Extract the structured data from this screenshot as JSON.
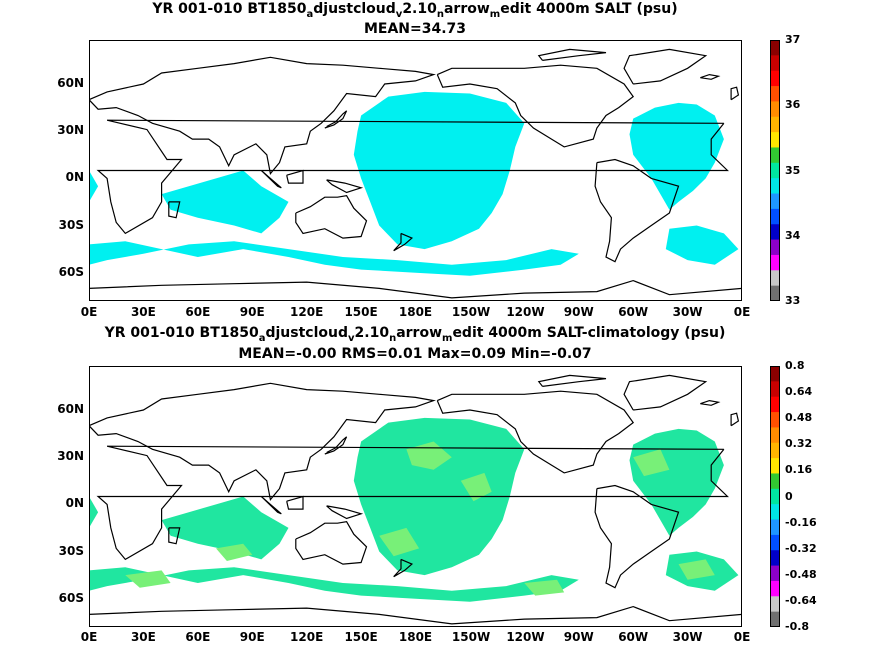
{
  "panels": [
    {
      "title_parts": [
        "YR 001-010 BT1850",
        "a",
        "djustcloud",
        "v",
        "2.10",
        "n",
        "arrow",
        "m",
        "edit 4000m SALT (psu)"
      ],
      "subtitle": "MEAN=34.73",
      "colorbar": {
        "labels": [
          "37",
          "36",
          "35",
          "34",
          "33"
        ],
        "colors": [
          "#8b0000",
          "#c80000",
          "#ff0000",
          "#ff5000",
          "#ff8c00",
          "#ffb400",
          "#ffe600",
          "#32c832",
          "#00e6a0",
          "#00e6e6",
          "#1e96ff",
          "#0050ff",
          "#0000c8",
          "#8c00c8",
          "#ff00ff",
          "#c8c8c8",
          "#707070"
        ]
      },
      "fill_color": "#00f0f0"
    },
    {
      "title_parts": [
        "YR 001-010 BT1850",
        "a",
        "djustcloud",
        "v",
        "2.10",
        "n",
        "arrow",
        "m",
        "edit 4000m SALT-climatology (psu)"
      ],
      "subtitle": "MEAN=-0.00   RMS=0.01   Max=0.09   Min=-0.07",
      "colorbar": {
        "labels": [
          "0.8",
          "0.64",
          "0.48",
          "0.32",
          "0.16",
          "0",
          "-0.16",
          "-0.32",
          "-0.48",
          "-0.64",
          "-0.8"
        ],
        "colors": [
          "#8b0000",
          "#c80000",
          "#ff0000",
          "#ff5000",
          "#ff8c00",
          "#ffb400",
          "#ffe600",
          "#32c832",
          "#00e6a0",
          "#00e6e6",
          "#1e96ff",
          "#0050ff",
          "#0000c8",
          "#8c00c8",
          "#ff00ff",
          "#c8c8c8",
          "#707070"
        ]
      },
      "fill_color": "#20e6a0",
      "fill_color2": "#78f078"
    }
  ],
  "lat_labels": [
    "60N",
    "30N",
    "0N",
    "30S",
    "60S"
  ],
  "lon_labels": [
    "0E",
    "30E",
    "60E",
    "90E",
    "120E",
    "150E",
    "180E",
    "150W",
    "120W",
    "90W",
    "60W",
    "30W",
    "0E"
  ]
}
